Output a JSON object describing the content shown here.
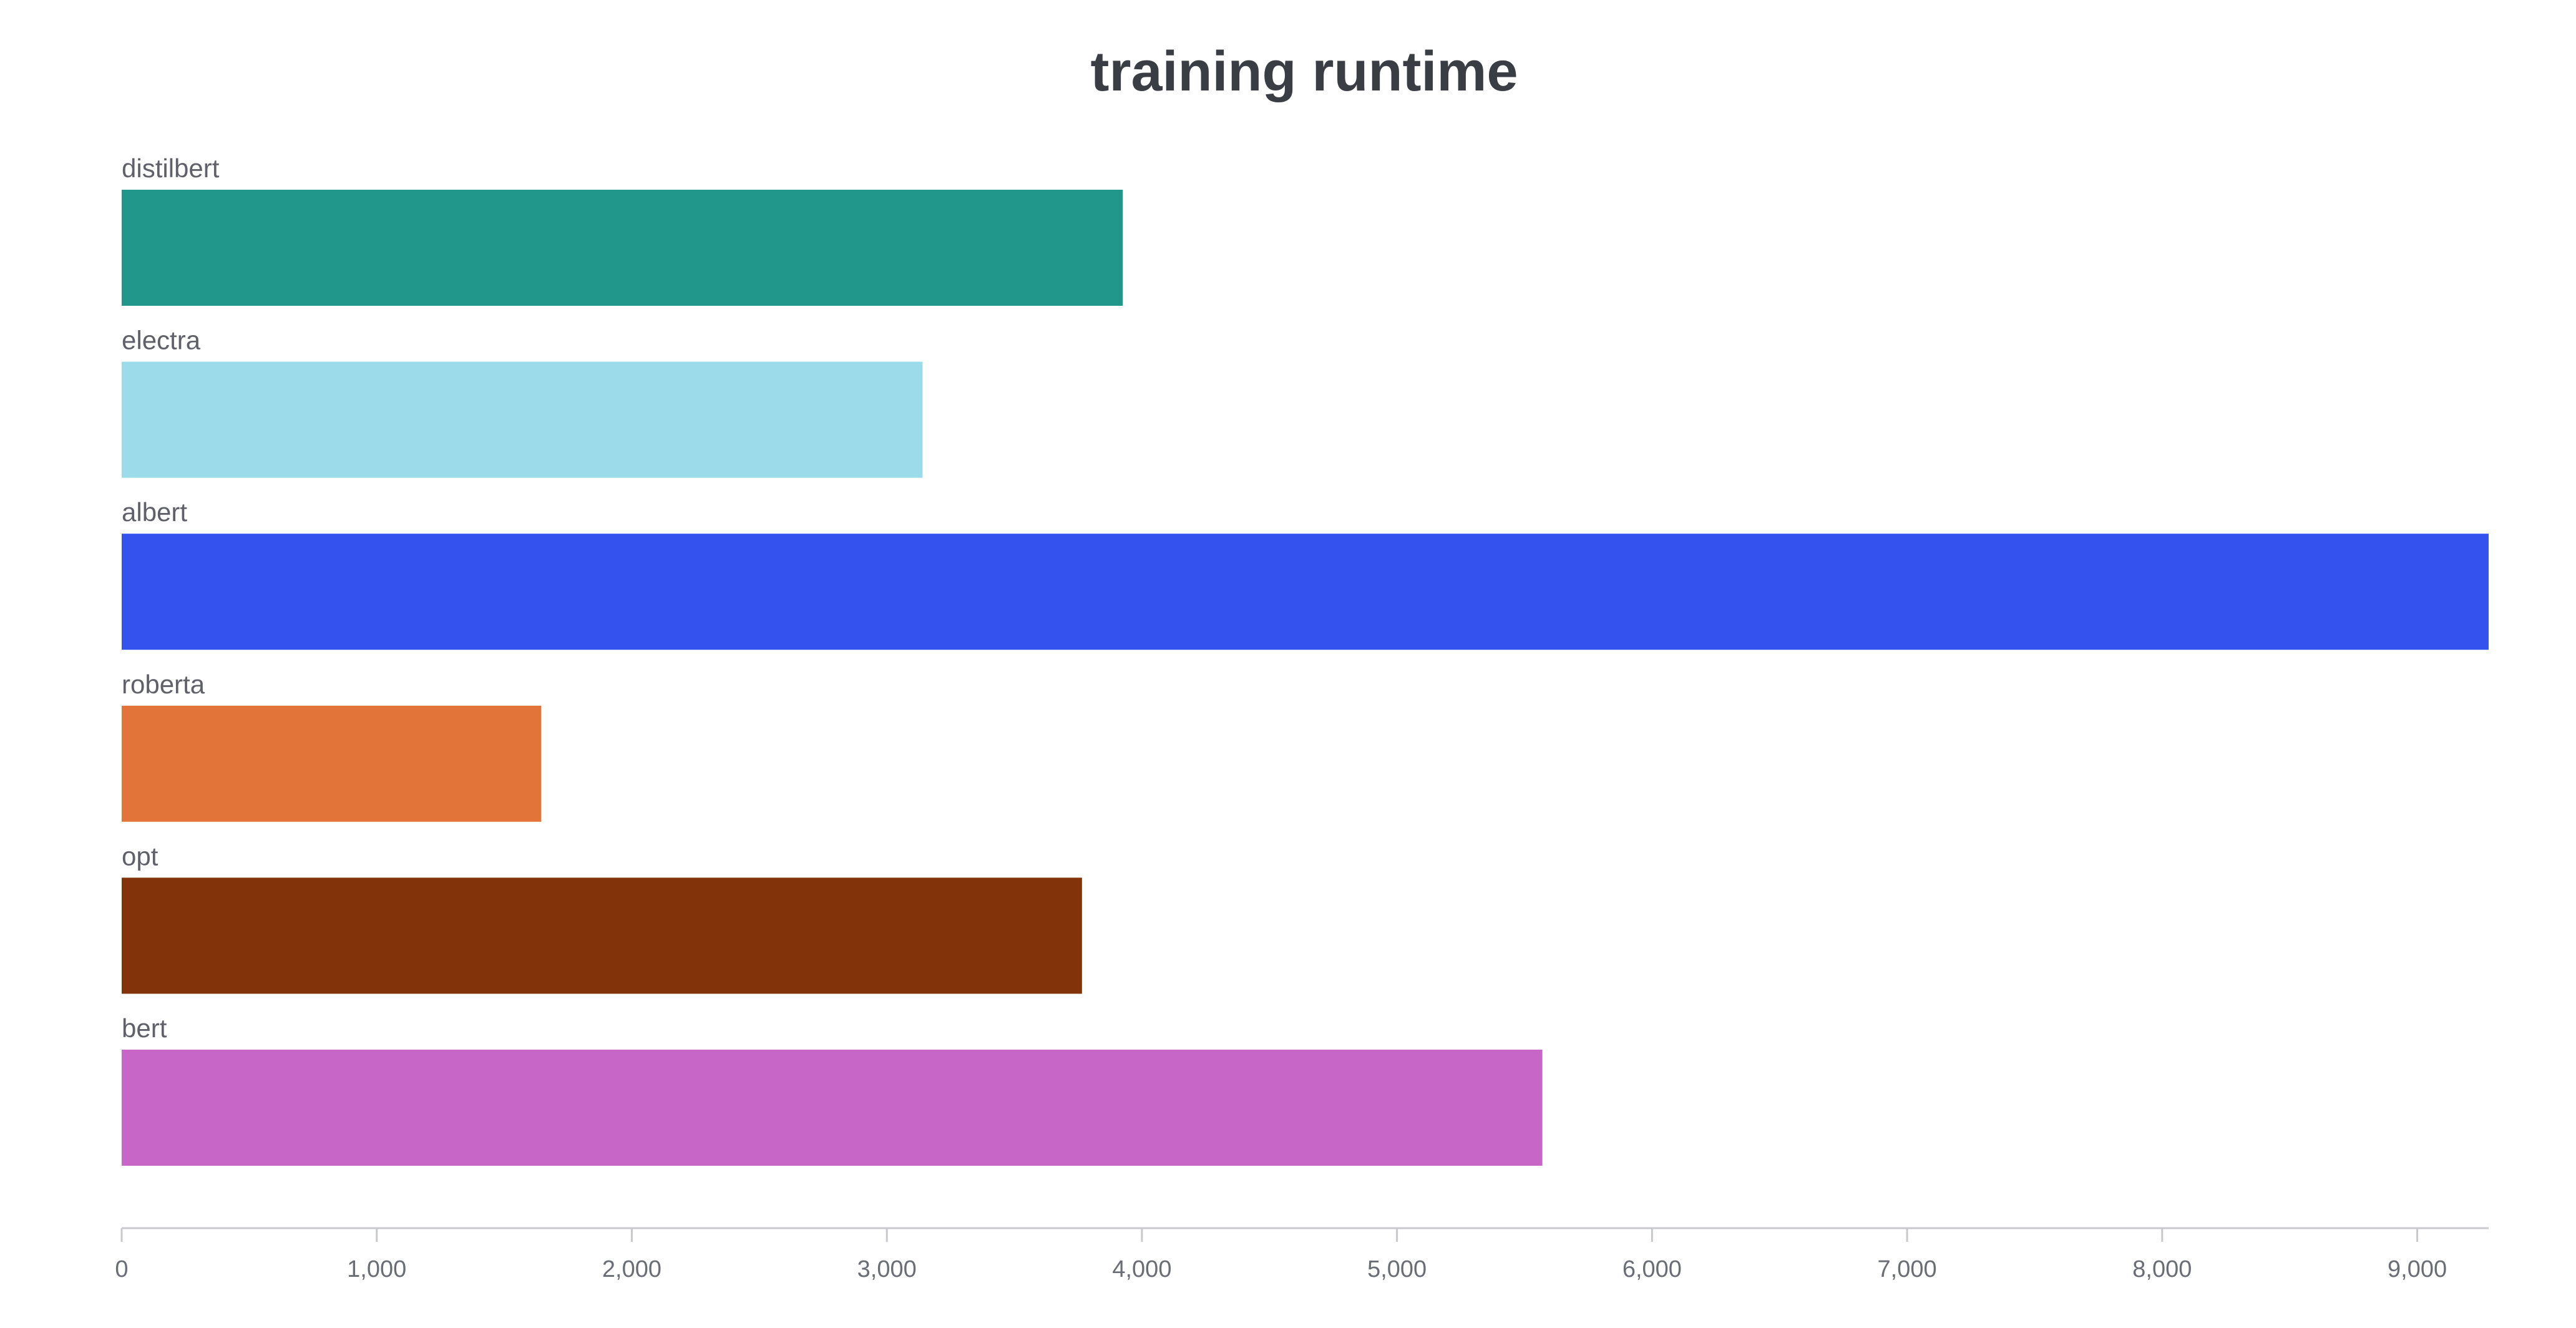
{
  "chart_data": {
    "type": "bar",
    "orientation": "horizontal",
    "title": "training runtime",
    "xlabel": "",
    "ylabel": "",
    "xlim": [
      0,
      9280
    ],
    "x_ticks": [
      0,
      1000,
      2000,
      3000,
      4000,
      5000,
      6000,
      7000,
      8000,
      9000
    ],
    "x_tick_labels": [
      "0",
      "1,000",
      "2,000",
      "3,000",
      "4,000",
      "5,000",
      "6,000",
      "7,000",
      "8,000",
      "9,000"
    ],
    "grid": false,
    "legend": "none",
    "categories": [
      "distilbert",
      "electra",
      "albert",
      "roberta",
      "opt",
      "bert"
    ],
    "values": [
      3925,
      3140,
      9280,
      1645,
      3765,
      5570
    ],
    "colors": [
      "#21968a",
      "#9cdcea",
      "#3453ee",
      "#e37439",
      "#82330a",
      "#c766c6"
    ],
    "axis_color": "#c8c9cc"
  }
}
